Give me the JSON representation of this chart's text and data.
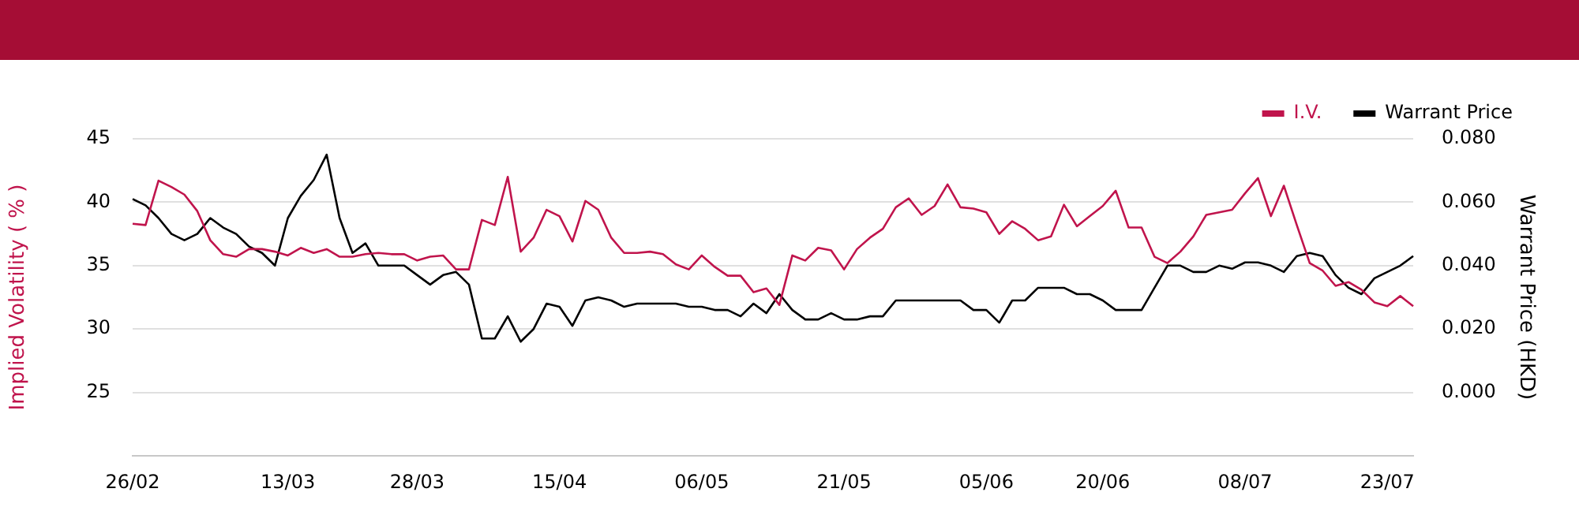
{
  "chart_data": {
    "type": "line",
    "categories": [
      "26/02",
      null,
      null,
      null,
      null,
      null,
      null,
      null,
      null,
      null,
      null,
      null,
      "13/03",
      null,
      null,
      null,
      null,
      null,
      null,
      null,
      null,
      null,
      "28/03",
      null,
      null,
      null,
      null,
      null,
      null,
      null,
      null,
      null,
      null,
      "15/04",
      null,
      null,
      null,
      null,
      null,
      null,
      null,
      null,
      null,
      null,
      "06/05",
      null,
      null,
      null,
      null,
      null,
      null,
      null,
      null,
      null,
      null,
      "21/05",
      null,
      null,
      null,
      null,
      null,
      null,
      null,
      null,
      null,
      null,
      "05/06",
      null,
      null,
      null,
      null,
      null,
      null,
      null,
      null,
      "20/06",
      null,
      null,
      null,
      null,
      null,
      null,
      null,
      null,
      null,
      null,
      "08/07",
      null,
      null,
      null,
      null,
      null,
      null,
      null,
      null,
      null,
      null,
      "23/07",
      null,
      null
    ],
    "series": [
      {
        "name": "I.V.",
        "color": "#c0144c",
        "axis": "y",
        "values": [
          38.3,
          38.2,
          41.7,
          41.2,
          40.6,
          39.3,
          37.0,
          35.9,
          35.7,
          36.3,
          36.3,
          36.1,
          35.8,
          36.4,
          36.0,
          36.3,
          35.7,
          35.7,
          35.9,
          36.0,
          35.9,
          35.9,
          35.4,
          35.7,
          35.8,
          34.7,
          34.7,
          38.6,
          38.2,
          42.0,
          36.1,
          37.2,
          39.4,
          38.9,
          36.9,
          40.1,
          39.4,
          37.2,
          36.0,
          36.0,
          36.1,
          35.9,
          35.1,
          34.7,
          35.8,
          34.9,
          34.2,
          34.2,
          32.9,
          33.2,
          31.9,
          35.8,
          35.4,
          36.4,
          36.2,
          34.7,
          36.3,
          37.2,
          37.9,
          39.6,
          40.3,
          39.0,
          39.7,
          41.4,
          39.6,
          39.5,
          39.2,
          37.5,
          38.5,
          37.9,
          37.0,
          37.3,
          39.8,
          38.1,
          38.9,
          39.7,
          40.9,
          38.0,
          38.0,
          35.7,
          35.2,
          36.1,
          37.3,
          39.0,
          39.2,
          39.4,
          40.7,
          41.9,
          38.9,
          41.3,
          38.2,
          35.2,
          34.6,
          33.4,
          33.7,
          33.1,
          32.1,
          31.8,
          32.6,
          31.8
        ]
      },
      {
        "name": "Warrant Price",
        "color": "#000000",
        "axis": "y2",
        "values": [
          0.061,
          0.059,
          0.055,
          0.05,
          0.048,
          0.05,
          0.055,
          0.052,
          0.05,
          0.046,
          0.044,
          0.04,
          0.055,
          0.062,
          0.067,
          0.075,
          0.055,
          0.044,
          0.047,
          0.04,
          0.04,
          0.04,
          0.037,
          0.034,
          0.037,
          0.038,
          0.034,
          0.017,
          0.017,
          0.024,
          0.016,
          0.02,
          0.028,
          0.027,
          0.021,
          0.029,
          0.03,
          0.029,
          0.027,
          0.028,
          0.028,
          0.028,
          0.028,
          0.027,
          0.027,
          0.026,
          0.026,
          0.024,
          0.028,
          0.025,
          0.031,
          0.026,
          0.023,
          0.023,
          0.025,
          0.023,
          0.023,
          0.024,
          0.024,
          0.029,
          0.029,
          0.029,
          0.029,
          0.029,
          0.029,
          0.026,
          0.026,
          0.022,
          0.029,
          0.029,
          0.033,
          0.033,
          0.033,
          0.031,
          0.031,
          0.029,
          0.026,
          0.026,
          0.026,
          0.033,
          0.04,
          0.04,
          0.038,
          0.038,
          0.04,
          0.039,
          0.041,
          0.041,
          0.04,
          0.038,
          0.043,
          0.044,
          0.043,
          0.037,
          0.033,
          0.031,
          0.036,
          0.038,
          0.04,
          0.043
        ]
      }
    ],
    "ylabel": "Implied Volatility ( % )",
    "y2label": "Warrant Price (HKD)",
    "ylim": [
      20,
      45
    ],
    "yticks": [
      25,
      30,
      35,
      40,
      45
    ],
    "y2lim": [
      -0.02,
      0.08
    ],
    "y2ticks": [
      {
        "value": 0,
        "label": "0.000"
      },
      {
        "value": 0.02,
        "label": "0.020"
      },
      {
        "value": 0.04,
        "label": "0.040"
      },
      {
        "value": 0.06,
        "label": "0.060"
      },
      {
        "value": 0.08,
        "label": "0.080"
      }
    ],
    "grid": "y",
    "legend": "top right",
    "marker": "none",
    "line_style": "solid"
  }
}
